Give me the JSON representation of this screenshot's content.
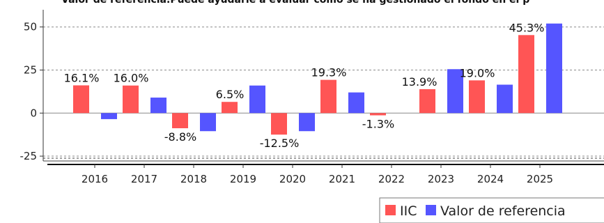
{
  "chart_data": {
    "type": "bar",
    "title": "Valor de referencia.Puede ayudarle a evaluar cómo se ha gestionado el fondo en el p",
    "categories": [
      "2016",
      "2017",
      "2018",
      "2019",
      "2020",
      "2021",
      "2022",
      "2023",
      "2024",
      "2025"
    ],
    "series": [
      {
        "name": "IIC",
        "color": "#ff5555",
        "values": [
          16.1,
          16.0,
          -8.8,
          6.5,
          -12.5,
          19.3,
          -1.3,
          13.9,
          19.0,
          45.3
        ]
      },
      {
        "name": "Valor de referencia",
        "color": "#5555ff",
        "values": [
          -3.5,
          9.0,
          -10.5,
          16.0,
          -10.5,
          12.0,
          0.0,
          25.5,
          16.5,
          52.0
        ]
      }
    ],
    "data_labels": [
      {
        "series": "IIC",
        "category": "2016",
        "text": "16.1%"
      },
      {
        "series": "IIC",
        "category": "2017",
        "text": "16.0%"
      },
      {
        "series": "IIC",
        "category": "2018",
        "text": "-8.8%"
      },
      {
        "series": "IIC",
        "category": "2019",
        "text": "6.5%"
      },
      {
        "series": "IIC",
        "category": "2020",
        "text": "-12.5%"
      },
      {
        "series": "IIC",
        "category": "2021",
        "text": "19.3%"
      },
      {
        "series": "IIC",
        "category": "2022",
        "text": "-1.3%"
      },
      {
        "series": "IIC",
        "category": "2023",
        "text": "13.9%"
      },
      {
        "series": "IIC",
        "category": "2024",
        "text": "19.0%"
      },
      {
        "series": "IIC",
        "category": "2025",
        "text": "45.3%"
      }
    ],
    "yticks": [
      -25,
      0,
      25,
      50
    ],
    "ylim": [
      -27,
      60
    ],
    "xlabel": "",
    "ylabel": "",
    "grid": true,
    "grid_style": "dashed",
    "legend_position": "bottom-right"
  }
}
